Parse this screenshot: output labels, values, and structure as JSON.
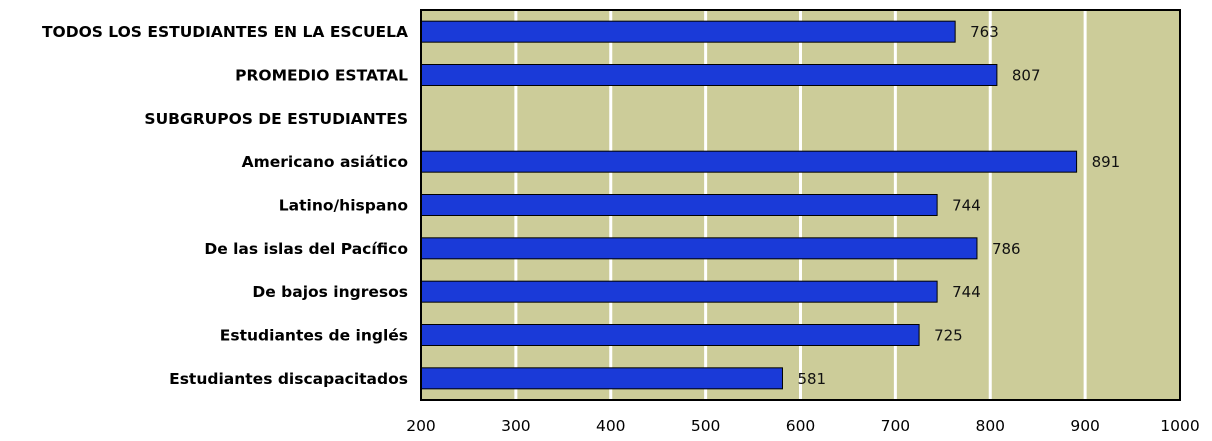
{
  "chart_data": {
    "type": "bar",
    "orientation": "horizontal",
    "categories": [
      "TODOS LOS ESTUDIANTES EN LA ESCUELA",
      "PROMEDIO ESTATAL",
      "SUBGRUPOS DE ESTUDIANTES",
      "Americano asiático",
      "Latino/hispano",
      "De las islas del Pacífico",
      "De bajos ingresos",
      "Estudiantes de inglés",
      "Estudiantes discapacitados"
    ],
    "values": [
      763,
      807,
      null,
      891,
      744,
      786,
      744,
      725,
      581
    ],
    "value_labels": [
      "763",
      "807",
      "",
      "891",
      "744",
      "786",
      "744",
      "725",
      "581"
    ],
    "xlim": [
      200,
      1000
    ],
    "x_ticks": [
      200,
      300,
      400,
      500,
      600,
      700,
      800,
      900,
      1000
    ],
    "x_tick_labels": [
      "200",
      "300",
      "400",
      "500",
      "600",
      "700",
      "800",
      "900",
      "1000"
    ],
    "grid": true,
    "legend": "none",
    "title": "",
    "xlabel": "",
    "ylabel": "",
    "colors": {
      "bar_fill": "#1a3ad8",
      "bar_stroke": "#000000",
      "plot_background": "#cccc99",
      "grid_line": "#ffffff",
      "frame": "#000000"
    }
  }
}
